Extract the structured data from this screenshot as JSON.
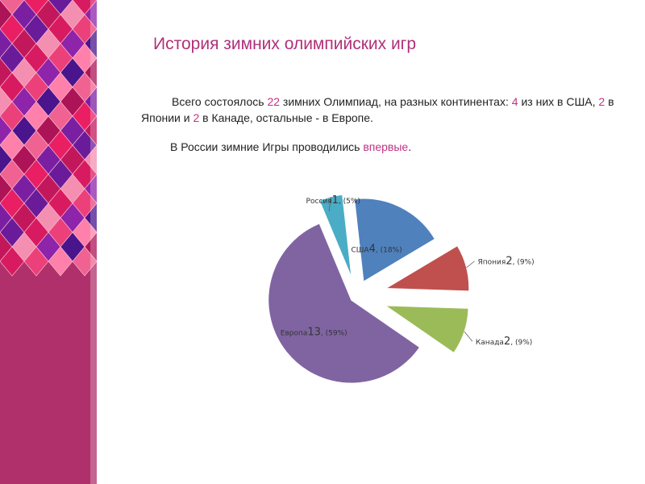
{
  "title": "История зимних олимпийских игр",
  "paragraph1": {
    "lead": "Всего состоялось ",
    "n_total": "22",
    "t1": " зимних Олимпиад, на разных континентах: ",
    "n_usa": "4",
    "t2": " из них в США,  ",
    "n_japan": "2",
    "t3": " в Японии и ",
    "n_canada": "2",
    "t4": " в Канаде, остальные - в Европе."
  },
  "paragraph2": {
    "lead": "В России зимние Игры проводились ",
    "highlight": "впервые",
    "tail": "."
  },
  "colors": {
    "highlight": "#c33183",
    "title": "#b0307a"
  },
  "chart_data": {
    "type": "pie",
    "exploded": true,
    "slices": [
      {
        "name": "США",
        "value": 4,
        "value_text": "4",
        "pct": "(18%)",
        "color": "#4f81bd"
      },
      {
        "name": "Япония",
        "value": 2,
        "value_text": "2",
        "pct": "(9%)",
        "color": "#c0504d"
      },
      {
        "name": "Канада",
        "value": 2,
        "value_text": "2",
        "pct": "(9%)",
        "color": "#9bbb59"
      },
      {
        "name": "Европа",
        "value": 13,
        "value_text": "13",
        "pct": "(59%)",
        "color": "#8064a2"
      },
      {
        "name": "Россия",
        "value": 1,
        "value_text": "1",
        "pct": "(5%)",
        "color": "#4bacc6"
      }
    ]
  }
}
